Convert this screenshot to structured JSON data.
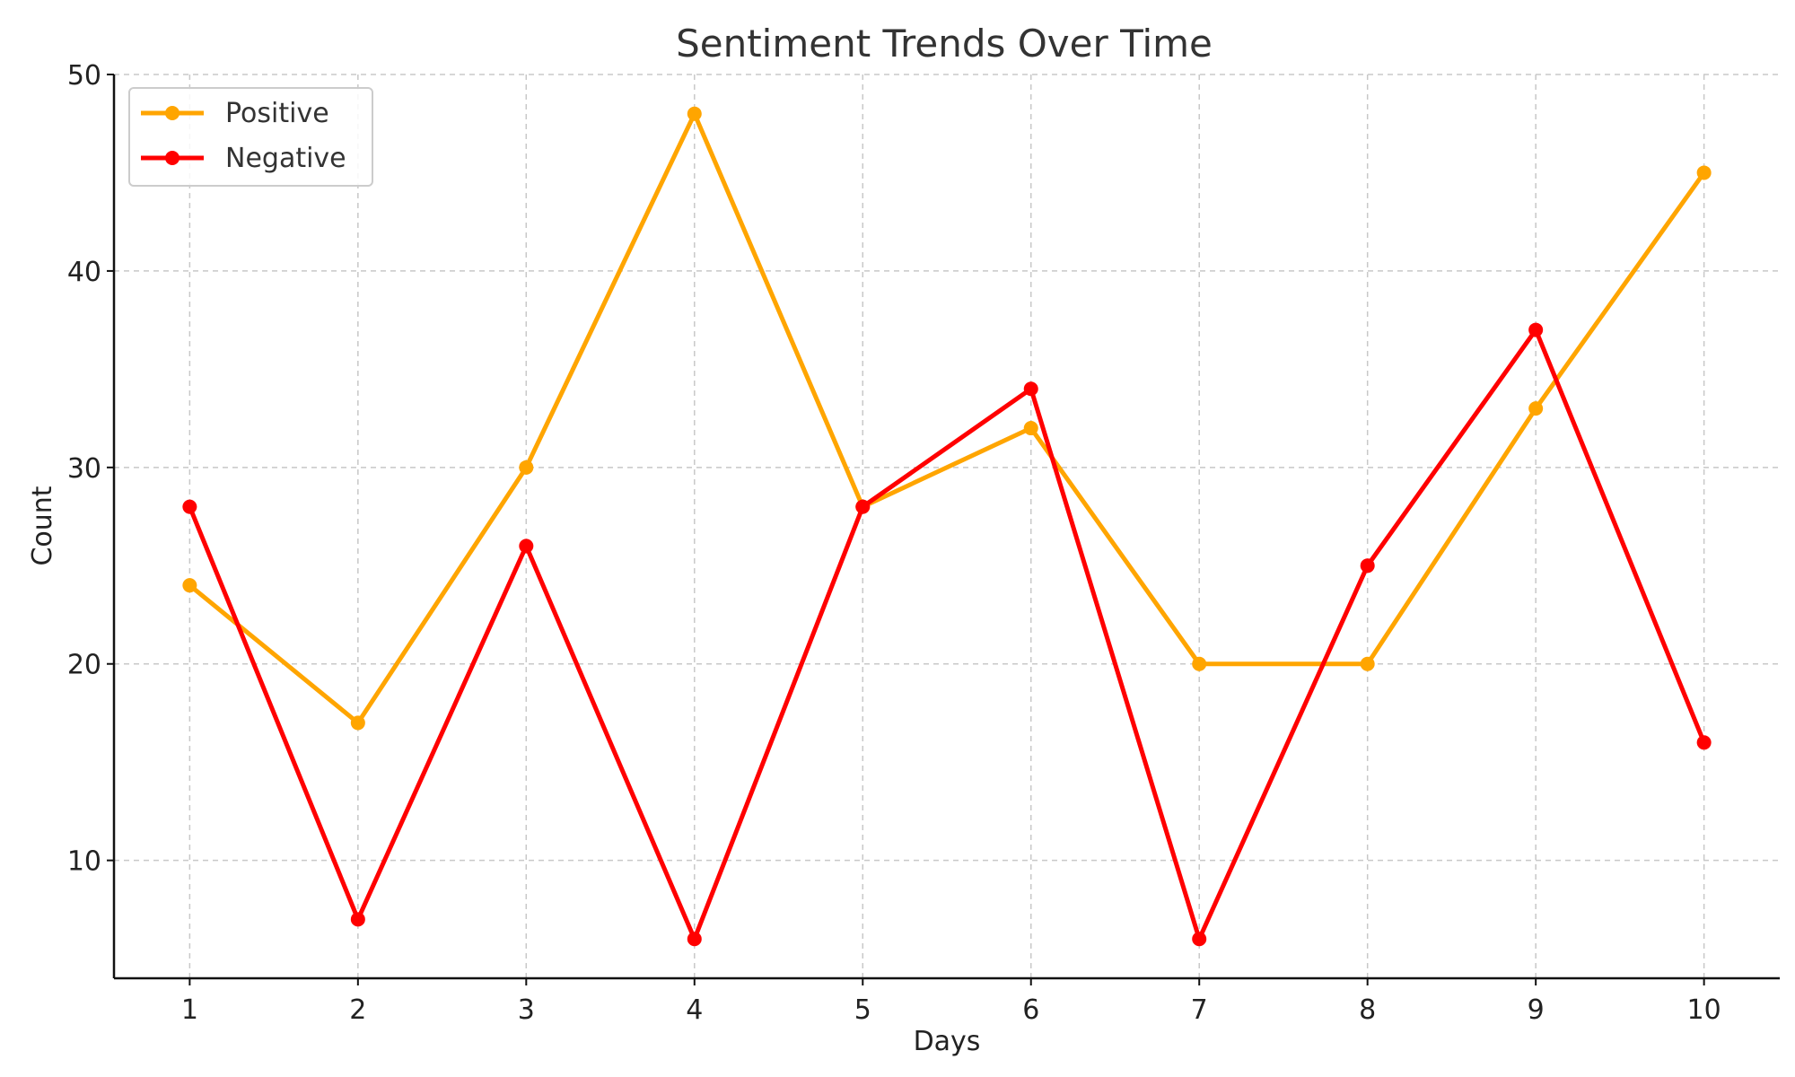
{
  "chart_data": {
    "type": "line",
    "title": "Sentiment Trends Over Time",
    "xlabel": "Days",
    "ylabel": "Count",
    "x": [
      1,
      2,
      3,
      4,
      5,
      6,
      7,
      8,
      9,
      10
    ],
    "xticks": [
      1,
      2,
      3,
      4,
      5,
      6,
      7,
      8,
      9,
      10
    ],
    "yticks": [
      10,
      20,
      30,
      40,
      50
    ],
    "xlim": [
      0.55,
      10.45
    ],
    "ylim": [
      4,
      50
    ],
    "grid": true,
    "legend_position": "top-left",
    "series": [
      {
        "name": "Positive",
        "color": "#FFA500",
        "marker": "circle",
        "values": [
          24,
          17,
          30,
          48,
          28,
          32,
          20,
          20,
          33,
          45
        ]
      },
      {
        "name": "Negative",
        "color": "#FF0000",
        "marker": "circle",
        "values": [
          28,
          7,
          26,
          6,
          28,
          34,
          6,
          25,
          37,
          16
        ]
      }
    ]
  }
}
